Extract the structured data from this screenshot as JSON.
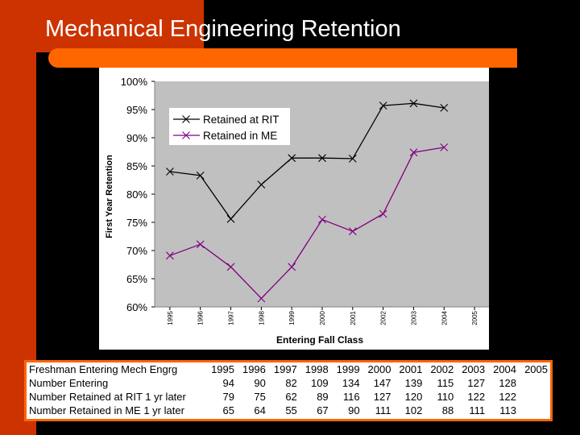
{
  "slide": {
    "title": "Mechanical Engineering Retention"
  },
  "colors": {
    "background": "#000000",
    "accent_dark": "#cc3300",
    "accent_orange": "#ff6600",
    "plot_area": "#c0c0c0",
    "series_rit": "#000000",
    "series_me": "#800080"
  },
  "chart_data": {
    "type": "line",
    "title": "",
    "xlabel": "Entering Fall Class",
    "ylabel": "First Year Retention",
    "categories": [
      "1995",
      "1996",
      "1997",
      "1998",
      "1999",
      "2000",
      "2001",
      "2002",
      "2003",
      "2004",
      "2005"
    ],
    "ylim": [
      0.6,
      1.0
    ],
    "yticks": [
      0.6,
      0.65,
      0.7,
      0.75,
      0.8,
      0.85,
      0.9,
      0.95,
      1.0
    ],
    "ytick_labels": [
      "60%",
      "65%",
      "70%",
      "75%",
      "80%",
      "85%",
      "90%",
      "95%",
      "100%"
    ],
    "grid": false,
    "legend_position": "top-left",
    "series": [
      {
        "name": "Retained at RIT",
        "values": [
          0.84,
          0.833,
          0.756,
          0.817,
          0.864,
          0.864,
          0.863,
          0.957,
          0.961,
          0.953,
          null
        ]
      },
      {
        "name": "Retained in ME",
        "values": [
          0.691,
          0.711,
          0.671,
          0.615,
          0.671,
          0.755,
          0.734,
          0.765,
          0.874,
          0.883,
          null
        ]
      }
    ]
  },
  "table": {
    "rows": [
      {
        "label": "Freshman Entering Mech Engrg",
        "values": [
          "1995",
          "1996",
          "1997",
          "1998",
          "1999",
          "2000",
          "2001",
          "2002",
          "2003",
          "2004",
          "2005"
        ]
      },
      {
        "label": "Number Entering",
        "values": [
          "94",
          "90",
          "82",
          "109",
          "134",
          "147",
          "139",
          "115",
          "127",
          "128",
          ""
        ]
      },
      {
        "label": "Number Retained at RIT 1 yr later",
        "values": [
          "79",
          "75",
          "62",
          "89",
          "116",
          "127",
          "120",
          "110",
          "122",
          "122",
          ""
        ]
      },
      {
        "label": "Number Retained in ME 1 yr later",
        "values": [
          "65",
          "64",
          "55",
          "67",
          "90",
          "111",
          "102",
          "88",
          "111",
          "113",
          ""
        ]
      }
    ]
  }
}
